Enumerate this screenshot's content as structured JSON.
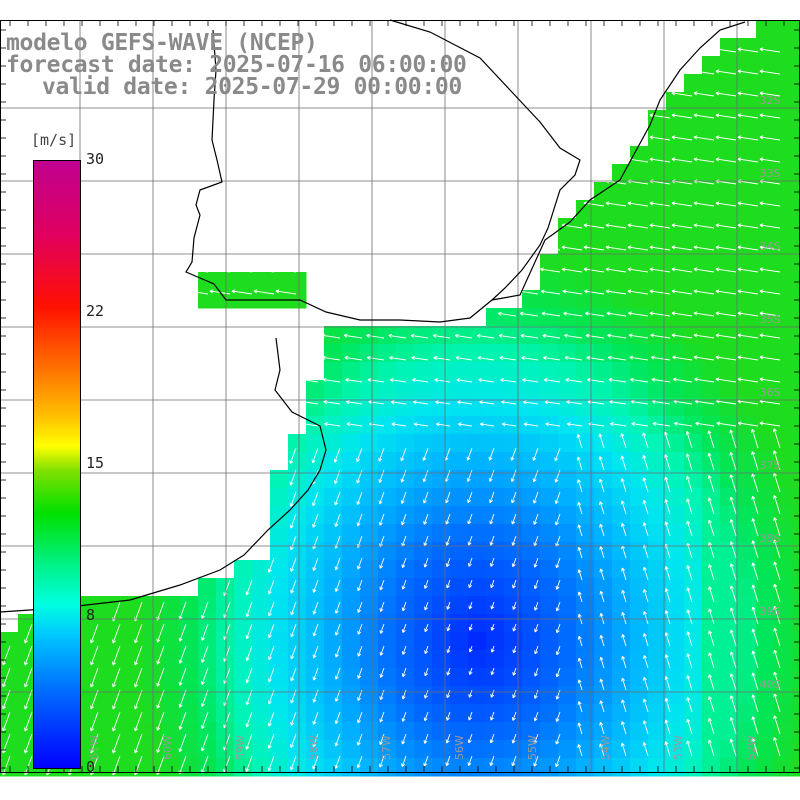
{
  "title": {
    "line1": "modelo GEFS-WAVE (NCEP)",
    "line2": "forecast date: 2025-07-16 06:00:00",
    "line3": "valid date: 2025-07-29 00:00:00"
  },
  "colorbar": {
    "unit": "[m/s]",
    "ticks": [
      "30",
      "22",
      "15",
      "8",
      "0"
    ],
    "tick_values": [
      30,
      22,
      15,
      8,
      0
    ],
    "min": 0,
    "max": 30
  },
  "grid": {
    "lat_labels": [
      "32S",
      "33S",
      "34S",
      "35S",
      "36S",
      "37S",
      "38S",
      "39S",
      "40S"
    ],
    "lon_labels": [
      "61W",
      "60W",
      "59W",
      "58W",
      "57W",
      "56W",
      "55W",
      "54W",
      "53W",
      "52W"
    ]
  },
  "colors": {
    "land": "#ffffff",
    "gridline": "#6e6e6e",
    "coast": "#000000",
    "arrows": "#ffffff",
    "text": "#8a8a8a"
  },
  "field": {
    "variable": "wind speed",
    "units": "m/s",
    "arrow_icon": "wind-arrow-icon"
  }
}
